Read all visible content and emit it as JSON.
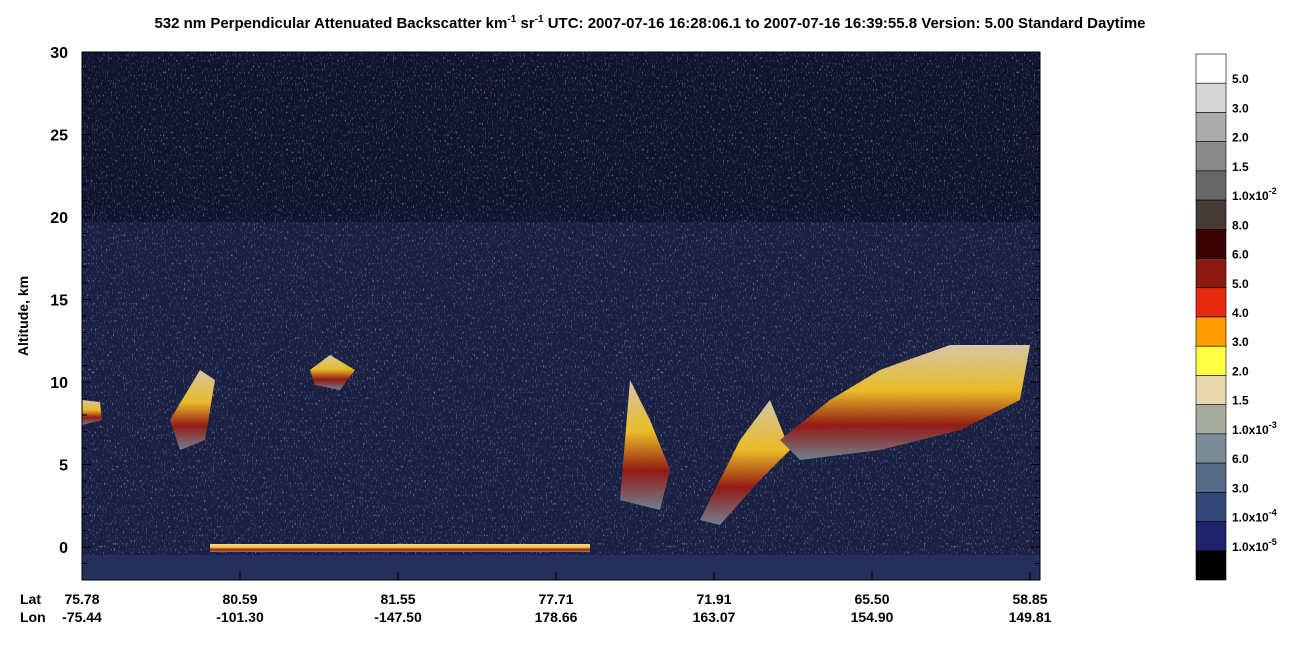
{
  "chart_data": {
    "type": "heatmap",
    "title_parts": [
      "532 nm Perpendicular Attenuated Backscatter km",
      "-1",
      " sr",
      "-1",
      "  UTC: 2007-07-16 16:28:06.1 to 2007-07-16 16:39:55.8  Version: 5.00 Standard Daytime"
    ],
    "y_label": "Altitude, km",
    "ylim": [
      -2,
      30
    ],
    "yticks": [
      0,
      5,
      10,
      15,
      20,
      25,
      30
    ],
    "x_tick_rows": [
      {
        "label": "Lat",
        "values": [
          "75.78",
          "80.59",
          "81.55",
          "77.71",
          "71.91",
          "65.50",
          "58.85"
        ]
      },
      {
        "label": "Lon",
        "values": [
          "-75.44",
          "-101.30",
          "-147.50",
          "178.66",
          "163.07",
          "154.90",
          "149.81"
        ]
      }
    ],
    "colorbar": {
      "colors": [
        "#ffffff",
        "#d6d6d6",
        "#ababab",
        "#8a8a8a",
        "#676767",
        "#463a36",
        "#3a0404",
        "#8c1a10",
        "#e82a10",
        "#ff9c00",
        "#ffff44",
        "#e8d8b0",
        "#a8aca0",
        "#7a8c98",
        "#566a88",
        "#344878",
        "#1e2268",
        "#000000"
      ],
      "labels": [
        "5.0",
        "3.0",
        "2.0",
        "1.5",
        {
          "base": "1.0x10",
          "exp": "-2"
        },
        "8.0",
        "6.0",
        "5.0",
        "4.0",
        "3.0",
        "2.0",
        "1.5",
        {
          "base": "1.0x10",
          "exp": "-3"
        },
        "6.0",
        "3.0",
        {
          "base": "1.0x10",
          "exp": "-4"
        },
        {
          "base": "1.0x10",
          "exp": "-5"
        }
      ]
    }
  }
}
